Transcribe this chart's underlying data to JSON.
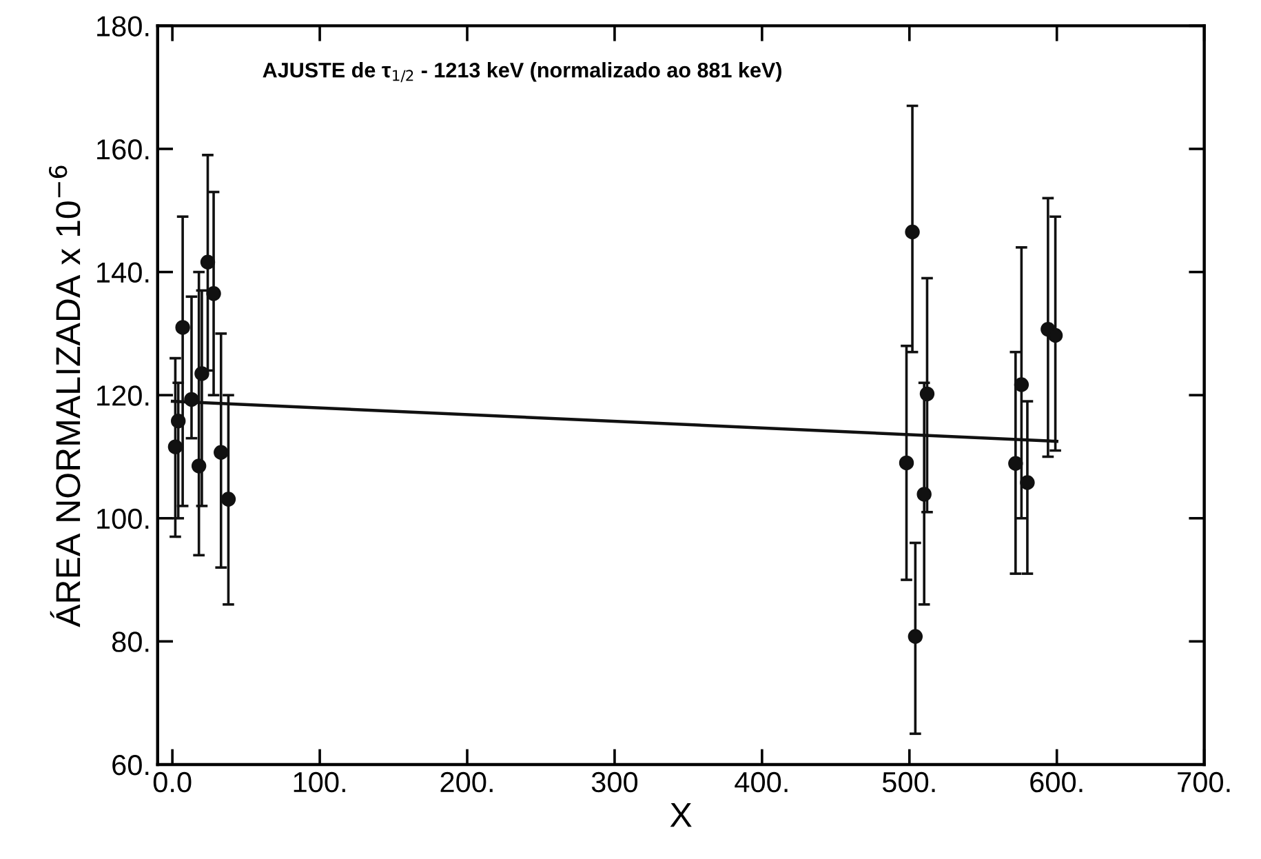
{
  "chart_data": {
    "type": "scatter",
    "xlabel": "X",
    "ylabel": "ÁREA NORMALIZADA x 10$^{−6}$",
    "annotations": [
      "AJUSTE de τ$_{1/2}$ - 1213 keV (normalizado ao 881 keV)"
    ],
    "xlim": [
      -10,
      700
    ],
    "ylim": [
      60,
      180
    ],
    "xticks": [
      {
        "value": 0,
        "label": "0.0"
      },
      {
        "value": 100,
        "label": "100."
      },
      {
        "value": 200,
        "label": "200."
      },
      {
        "value": 300,
        "label": "300"
      },
      {
        "value": 400,
        "label": "400."
      },
      {
        "value": 500,
        "label": "500."
      },
      {
        "value": 600,
        "label": "600."
      },
      {
        "value": 700,
        "label": "700."
      }
    ],
    "yticks": [
      {
        "value": 60,
        "label": "60."
      },
      {
        "value": 80,
        "label": "80."
      },
      {
        "value": 100,
        "label": "100."
      },
      {
        "value": 120,
        "label": "120."
      },
      {
        "value": 140,
        "label": "140."
      },
      {
        "value": 160,
        "label": "160."
      },
      {
        "value": 180,
        "label": "180."
      }
    ],
    "grid": false,
    "legend": false,
    "series": [
      {
        "marker": "circle",
        "color": "#111111",
        "x": [
          2,
          4,
          7,
          13,
          18,
          20,
          24,
          28,
          33,
          38,
          498,
          502,
          504,
          510,
          512,
          572,
          576,
          580,
          594,
          599
        ],
        "values": [
          111.6,
          115.8,
          131,
          119.3,
          108.5,
          123.5,
          141.6,
          136.5,
          110.7,
          103.1,
          109,
          146.5,
          80.8,
          103.9,
          120.2,
          108.9,
          121.7,
          105.8,
          130.7,
          129.7
        ],
        "errors": [
          [
            97,
            126
          ],
          [
            100,
            122
          ],
          [
            102,
            149
          ],
          [
            113,
            136
          ],
          [
            94,
            140
          ],
          [
            102,
            137
          ],
          [
            124,
            159
          ],
          [
            120,
            153
          ],
          [
            92,
            130
          ],
          [
            86,
            120
          ],
          [
            90,
            128
          ],
          [
            127,
            167
          ],
          [
            65,
            96
          ],
          [
            86,
            122
          ],
          [
            101,
            139
          ],
          [
            91,
            127
          ],
          [
            100,
            144
          ],
          [
            91,
            119
          ],
          [
            110,
            152
          ],
          [
            111,
            149
          ]
        ]
      },
      {
        "type": "line",
        "color": "#111111",
        "x": [
          0,
          600
        ],
        "values": [
          119,
          112.5
        ],
        "line_style": "solid"
      }
    ]
  }
}
